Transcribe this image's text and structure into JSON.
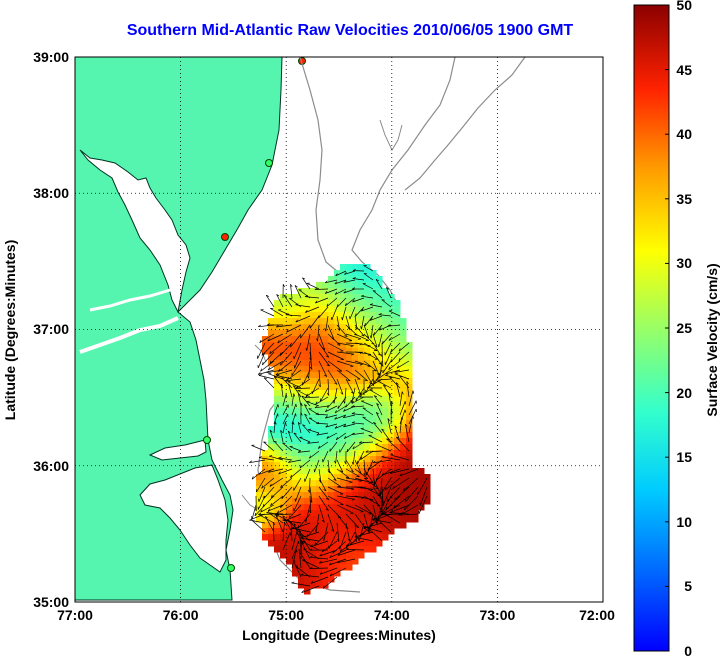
{
  "title": "Southern Mid-Atlantic Raw Velocities 2010/06/05 1900 GMT",
  "xlabel": "Longitude (Degrees:Minutes)",
  "ylabel": "Latitude (Degrees:Minutes)",
  "x_ticks": [
    "77:00",
    "76:00",
    "75:00",
    "74:00",
    "73:00",
    "72:00"
  ],
  "y_ticks": [
    "39:00",
    "38:00",
    "37:00",
    "36:00",
    "35:00"
  ],
  "colorbar": {
    "label": "Surface Velocity (cm/s)",
    "ticks": [
      "50",
      "45",
      "40",
      "35",
      "30",
      "25",
      "20",
      "15",
      "10",
      "5",
      "0"
    ],
    "min": 0,
    "max": 50
  },
  "colors": {
    "land": "#55f5b0",
    "title": "#0000ff",
    "contour": "#8c8c8c"
  }
}
